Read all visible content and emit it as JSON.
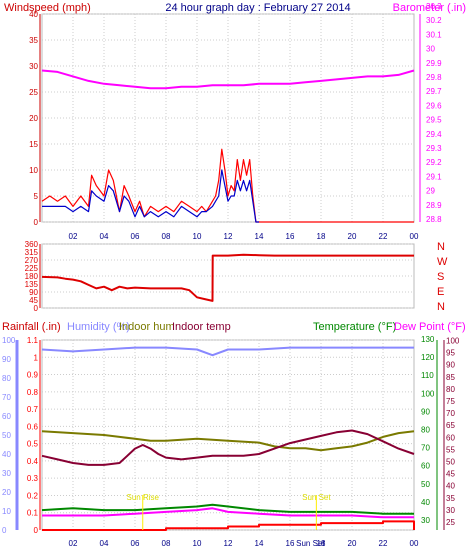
{
  "title": "24 hour graph day : February 27 2014",
  "colors": {
    "wind_axis": "#cc0000",
    "wind_speed": "#ff0000",
    "wind_avg": "#0000cc",
    "barometer": "#ff00ff",
    "direction": "#dd0000",
    "rain": "#ff0000",
    "humidity": "#8888ff",
    "indoor_hum": "#7a7a00",
    "indoor_temp": "#880033",
    "temperature": "#008800",
    "dew_point": "#ff00ff",
    "outdoor_temp_line": "#008800",
    "title": "#000088",
    "grid": "#cccccc"
  },
  "hour_labels": [
    "02",
    "04",
    "06",
    "08",
    "10",
    "12",
    "14",
    "16",
    "18",
    "20",
    "22",
    "00"
  ],
  "annotations": {
    "sun_set": "Sun Set",
    "sun_rise": "Sun Rise"
  },
  "chart_data": [
    {
      "type": "line",
      "id": "wind_baro",
      "left_label": "Windspeed (mph)",
      "right_label": "Barometer (.in)",
      "x_ticks": [
        "02",
        "04",
        "06",
        "08",
        "10",
        "12",
        "14",
        "16",
        "18",
        "20",
        "22",
        "00"
      ],
      "left_ylim": [
        0,
        40
      ],
      "left_ticks": [
        "0",
        "5",
        "10",
        "15",
        "20",
        "25",
        "30",
        "35",
        "40"
      ],
      "right_ylim": [
        28.8,
        30.2
      ],
      "right_ticks": [
        "28.8",
        "28.9",
        "29",
        "29.1",
        "29.2",
        "29.3",
        "29.4",
        "29.5",
        "29.6",
        "29.7",
        "29.8",
        "29.9",
        "30",
        "30.1",
        "30.2",
        "30.3"
      ],
      "series": [
        {
          "key": "barometer",
          "axis": "right",
          "x": [
            0,
            1,
            2,
            3,
            4,
            5,
            6,
            7,
            8,
            9,
            10,
            11,
            12,
            13,
            14,
            15,
            16,
            17,
            18,
            19,
            20,
            21,
            22,
            23,
            24
          ],
          "y": [
            29.82,
            29.81,
            29.78,
            29.75,
            29.73,
            29.72,
            29.71,
            29.7,
            29.7,
            29.71,
            29.71,
            29.72,
            29.72,
            29.72,
            29.73,
            29.73,
            29.73,
            29.74,
            29.75,
            29.76,
            29.77,
            29.78,
            29.78,
            29.79,
            29.82
          ]
        },
        {
          "key": "wind_speed",
          "axis": "left",
          "x": [
            0,
            0.5,
            1,
            1.5,
            2,
            2.5,
            3,
            3.2,
            3.5,
            4,
            4.3,
            4.6,
            5,
            5.3,
            5.6,
            6,
            6.3,
            6.6,
            7,
            7.5,
            8,
            8.5,
            9,
            9.5,
            10,
            10.3,
            10.6,
            11,
            11.2,
            11.4,
            11.6,
            11.8,
            12,
            12.2,
            12.4,
            12.6,
            12.8,
            13,
            13.2,
            13.4,
            13.6,
            13.8,
            14,
            14.5,
            15,
            16,
            17,
            18,
            19,
            20,
            21,
            22,
            23,
            24
          ],
          "y": [
            4,
            5,
            4,
            5,
            3,
            5,
            3,
            9,
            7,
            5,
            10,
            8,
            2,
            7,
            5,
            2,
            4,
            1,
            3,
            2,
            3,
            2,
            4,
            3,
            2,
            3,
            2,
            4,
            5,
            8,
            14,
            10,
            5,
            7,
            6,
            12,
            8,
            12,
            9,
            12,
            5,
            0,
            0,
            0,
            0,
            0,
            0,
            0,
            0,
            0,
            0,
            0,
            0,
            0
          ]
        },
        {
          "key": "wind_avg",
          "axis": "left",
          "x": [
            0,
            0.5,
            1,
            1.5,
            2,
            2.5,
            3,
            3.2,
            3.5,
            4,
            4.3,
            4.6,
            5,
            5.3,
            5.6,
            6,
            6.3,
            6.6,
            7,
            7.5,
            8,
            8.5,
            9,
            9.5,
            10,
            10.3,
            10.6,
            11,
            11.2,
            11.4,
            11.6,
            11.8,
            12,
            12.2,
            12.4,
            12.6,
            12.8,
            13,
            13.2,
            13.4,
            13.6,
            13.8,
            14
          ],
          "y": [
            3,
            3,
            3,
            3,
            2,
            3,
            2,
            6,
            5,
            4,
            7,
            6,
            2,
            5,
            4,
            1,
            3,
            1,
            2,
            1,
            2,
            1,
            3,
            2,
            1,
            2,
            2,
            3,
            4,
            5,
            10,
            7,
            4,
            5,
            5,
            8,
            6,
            8,
            6,
            8,
            4,
            0,
            0
          ]
        }
      ]
    },
    {
      "type": "line",
      "id": "direction",
      "left_ylim": [
        0,
        360
      ],
      "left_ticks": [
        "0",
        "90",
        "180",
        "270",
        "360"
      ],
      "left_minor_ticks": [
        "45",
        "135",
        "225",
        "315"
      ],
      "right_labels": [
        "N",
        "W",
        "S",
        "E",
        "N"
      ],
      "series": [
        {
          "key": "direction",
          "x": [
            0,
            1,
            1.5,
            2,
            2.5,
            3,
            3.5,
            4,
            4.5,
            5,
            5.5,
            6,
            7,
            8,
            9,
            9.5,
            10,
            10.5,
            11,
            11.01,
            12,
            13,
            14,
            15,
            16,
            17,
            18,
            19,
            20,
            21,
            22,
            23,
            24
          ],
          "y": [
            175,
            172,
            165,
            160,
            150,
            130,
            110,
            120,
            100,
            120,
            110,
            115,
            110,
            110,
            110,
            100,
            60,
            50,
            40,
            295,
            295,
            300,
            297,
            295,
            295,
            295,
            295,
            295,
            295,
            295,
            295,
            295,
            295
          ]
        }
      ]
    },
    {
      "type": "line",
      "id": "temp_rain_hum",
      "labels": [
        "Rainfall (.in)",
        "Humidity (%)",
        "Indoor hum",
        "Indoor temp",
        "Temperature (°F)",
        "Dew Point (°F)"
      ],
      "far_left_ylim": [
        0,
        100
      ],
      "far_left_ticks": [
        "0",
        "10",
        "20",
        "30",
        "40",
        "50",
        "60",
        "70",
        "80",
        "90",
        "100"
      ],
      "rain_ylim": [
        0,
        1.1
      ],
      "rain_ticks": [
        "0",
        "0.1",
        "0.2",
        "0.3",
        "0.4",
        "0.5",
        "0.6",
        "0.7",
        "0.8",
        "0.9",
        "1",
        "1.1"
      ],
      "right_ylim": [
        25,
        130
      ],
      "right_ticks_a": [
        "30",
        "40",
        "50",
        "60",
        "70",
        "80",
        "90",
        "100",
        "110",
        "120",
        "130"
      ],
      "right_ticks_b": [
        "25",
        "30",
        "35",
        "40",
        "45",
        "50",
        "55",
        "60",
        "65",
        "70",
        "75",
        "80",
        "85",
        "90",
        "95",
        "100"
      ],
      "series": [
        {
          "key": "humidity",
          "axis": "far_left",
          "x": [
            0,
            2,
            4,
            6,
            8,
            10,
            11,
            12,
            14,
            16,
            18,
            20,
            22,
            24
          ],
          "y": [
            95,
            94,
            95,
            96,
            96,
            95,
            92,
            95,
            95,
            96,
            96,
            96,
            96,
            96
          ]
        },
        {
          "key": "indoor_hum",
          "axis": "far_left",
          "x": [
            0,
            2,
            4,
            5,
            6,
            7,
            8,
            10,
            12,
            14,
            15,
            16,
            17,
            18,
            19,
            20,
            21,
            22,
            23,
            24
          ],
          "y": [
            52,
            51,
            50,
            49,
            48,
            47,
            47,
            48,
            47,
            46,
            44,
            43,
            43,
            42,
            43,
            44,
            46,
            49,
            51,
            52
          ]
        },
        {
          "key": "indoor_temp",
          "axis": "right",
          "x": [
            0,
            1,
            2,
            3,
            4,
            5,
            5.5,
            6,
            6.5,
            7,
            7.5,
            8,
            9,
            10,
            11,
            12,
            13,
            14,
            15,
            16,
            17,
            18,
            19,
            20,
            21,
            22,
            23,
            24
          ],
          "y": [
            66,
            64,
            62,
            61,
            61,
            62,
            66,
            70,
            72,
            70,
            67,
            65,
            64,
            65,
            66,
            66,
            66,
            67,
            70,
            73,
            75,
            77,
            79,
            80,
            78,
            74,
            70,
            67
          ]
        },
        {
          "key": "temperature",
          "axis": "right",
          "x": [
            0,
            2,
            4,
            6,
            8,
            10,
            11,
            12,
            14,
            16,
            18,
            20,
            22,
            24
          ],
          "y": [
            36,
            37,
            36,
            36,
            37,
            38,
            39,
            38,
            36,
            35,
            35,
            35,
            34,
            34
          ]
        },
        {
          "key": "dew_point",
          "axis": "right",
          "x": [
            0,
            2,
            4,
            6,
            8,
            10,
            11,
            12,
            14,
            16,
            18,
            20,
            22,
            24
          ],
          "y": [
            33,
            33,
            33,
            34,
            35,
            36,
            37,
            35,
            34,
            33,
            33,
            33,
            32,
            32
          ]
        },
        {
          "key": "rain",
          "axis": "rain",
          "x": [
            0,
            4,
            8,
            10,
            12,
            14,
            16,
            18,
            20,
            22,
            23.8,
            24
          ],
          "y": [
            0,
            0,
            0.01,
            0.01,
            0.02,
            0.03,
            0.03,
            0.04,
            0.04,
            0.05,
            0.05,
            0.0
          ]
        }
      ]
    }
  ]
}
